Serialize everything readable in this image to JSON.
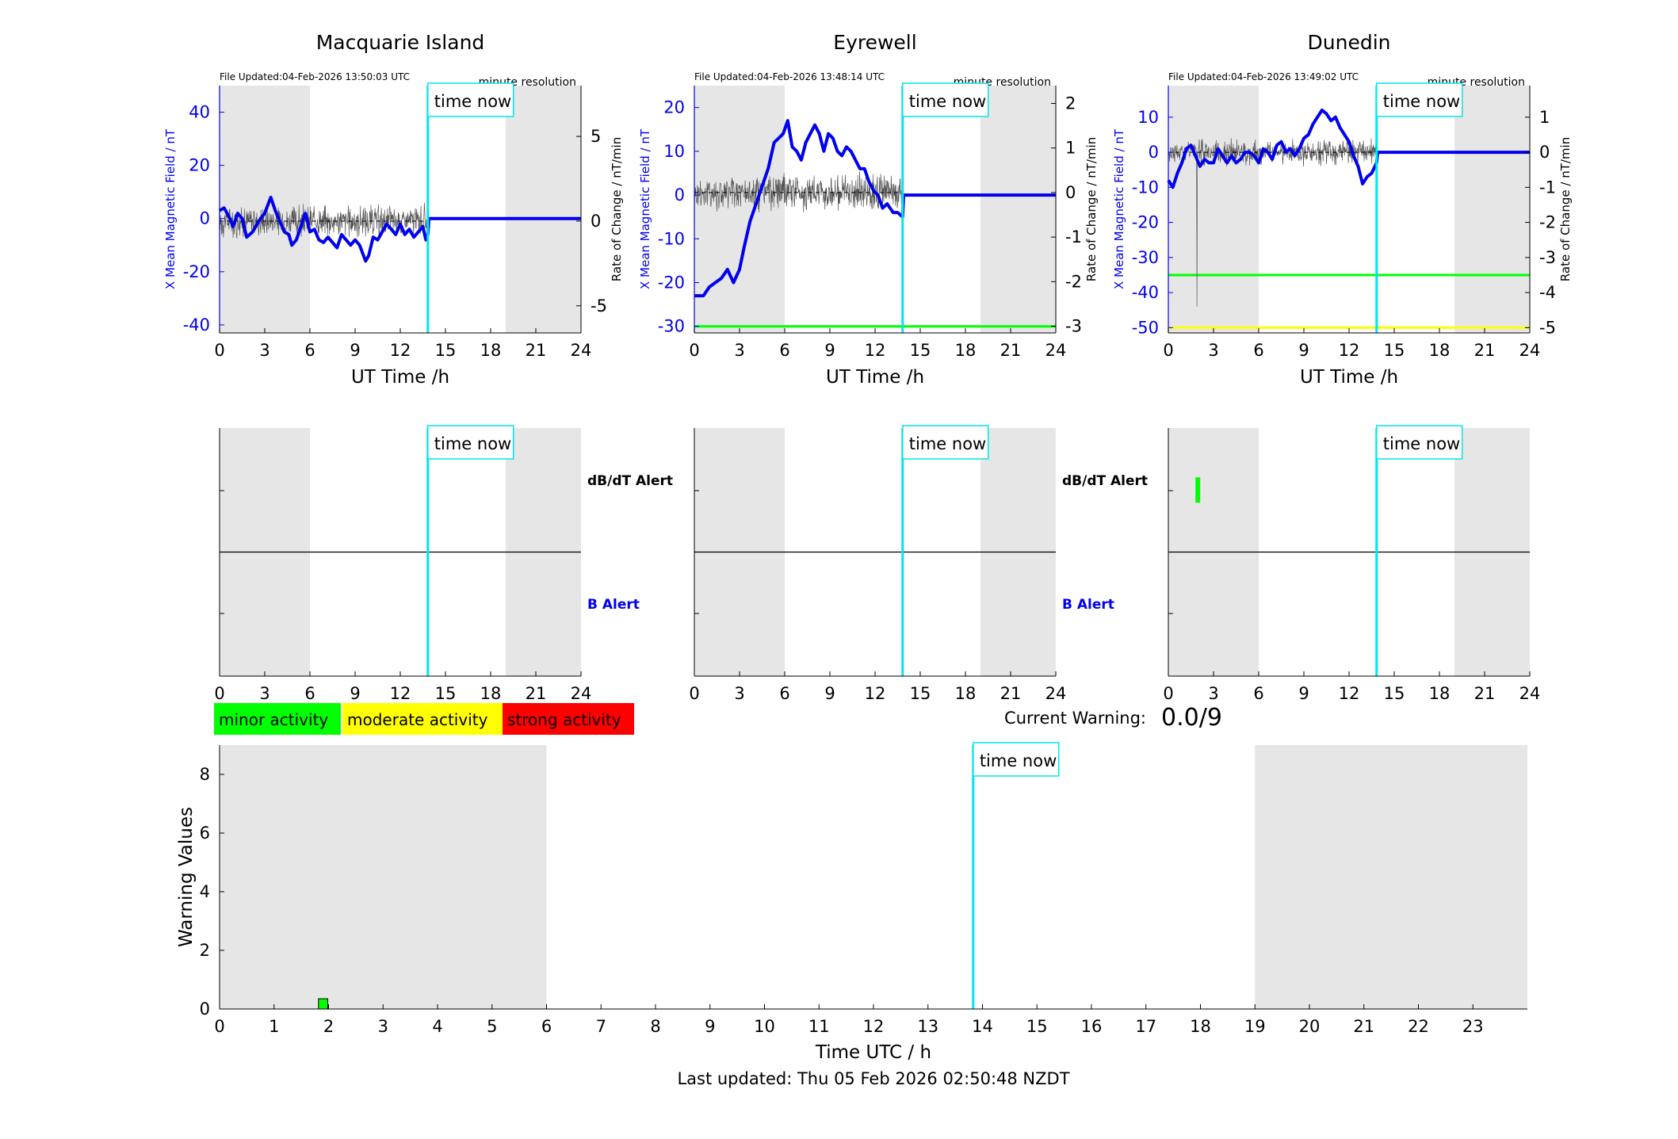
{
  "time_now_label": "time now",
  "top_panels": [
    {
      "title": "Macquarie Island",
      "file_updated": "File Updated:04-Feb-2026 13:50:03 UTC",
      "resolution": "minute resolution",
      "ylabel_left": "X Mean Magnetic Field / nT",
      "ylabel_right": "Rate of Change / nT/min",
      "xlabel": "UT Time /h"
    },
    {
      "title": "Eyrewell",
      "file_updated": "File Updated:04-Feb-2026 13:48:14 UTC",
      "resolution": "minute resolution",
      "ylabel_left": "X Mean Magnetic Field / nT",
      "ylabel_right": "Rate of Change / nT/min",
      "xlabel": "UT Time /h"
    },
    {
      "title": "Dunedin",
      "file_updated": "File Updated:04-Feb-2026 13:49:02 UTC",
      "resolution": "minute resolution",
      "ylabel_left": "X Mean Magnetic Field / nT",
      "ylabel_right": "Rate of Change / nT/min",
      "xlabel": "UT Time /h"
    }
  ],
  "alert_labels": {
    "dbdt": "dB/dT Alert",
    "b": "B Alert"
  },
  "legend": [
    {
      "label": "minor activity",
      "color": "#00ff00"
    },
    {
      "label": "moderate activity",
      "color": "#ffff00"
    },
    {
      "label": "strong activity",
      "color": "#ff0000"
    }
  ],
  "current_warning": {
    "label": "Current Warning:",
    "value": "0.0/9"
  },
  "last_updated": "Last updated: Thu 05 Feb 2026 02:50:48 NZDT",
  "chart_data": [
    {
      "type": "line",
      "station": "Macquarie Island",
      "x_range": [
        0,
        24
      ],
      "x_ticks": [
        0,
        3,
        6,
        9,
        12,
        15,
        18,
        21,
        24
      ],
      "y_left_range": [
        -43,
        50
      ],
      "y_left_ticks": [
        -40,
        -20,
        0,
        20,
        40
      ],
      "y_right_range": [
        -6.6,
        8.0
      ],
      "y_right_ticks": [
        -5,
        0,
        5
      ],
      "time_now": 13.83,
      "night_shading": [
        [
          0,
          6
        ],
        [
          19,
          24
        ]
      ],
      "threshold_lines": [],
      "mean_field": [
        [
          0,
          3
        ],
        [
          0.3,
          4
        ],
        [
          0.6,
          1
        ],
        [
          0.9,
          -3
        ],
        [
          1.2,
          2
        ],
        [
          1.5,
          0
        ],
        [
          1.8,
          -7
        ],
        [
          2.2,
          -5
        ],
        [
          2.6,
          -1
        ],
        [
          3.0,
          2
        ],
        [
          3.4,
          8
        ],
        [
          3.7,
          3
        ],
        [
          4.0,
          -1
        ],
        [
          4.3,
          -5
        ],
        [
          4.6,
          -6
        ],
        [
          4.8,
          -10
        ],
        [
          5.1,
          -8
        ],
        [
          5.4,
          -3
        ],
        [
          5.7,
          2
        ],
        [
          6.0,
          -5
        ],
        [
          6.3,
          -4
        ],
        [
          6.6,
          -8
        ],
        [
          6.9,
          -9
        ],
        [
          7.2,
          -7
        ],
        [
          7.5,
          -9
        ],
        [
          7.8,
          -11
        ],
        [
          8.1,
          -6
        ],
        [
          8.4,
          -8
        ],
        [
          8.7,
          -10
        ],
        [
          9.0,
          -8
        ],
        [
          9.3,
          -10
        ],
        [
          9.5,
          -13
        ],
        [
          9.7,
          -16
        ],
        [
          9.9,
          -14
        ],
        [
          10.2,
          -7
        ],
        [
          10.5,
          -8
        ],
        [
          10.8,
          -5
        ],
        [
          11.1,
          -2
        ],
        [
          11.4,
          -4
        ],
        [
          11.7,
          -6
        ],
        [
          12.0,
          -2
        ],
        [
          12.3,
          -6
        ],
        [
          12.6,
          -4
        ],
        [
          12.9,
          -7
        ],
        [
          13.2,
          -5
        ],
        [
          13.5,
          -3
        ],
        [
          13.7,
          -8
        ],
        [
          13.83,
          -6
        ],
        [
          13.9,
          0
        ],
        [
          24,
          0
        ]
      ],
      "rate_of_change": {
        "baseline": 0,
        "noise_amplitude": 0.8
      }
    },
    {
      "type": "line",
      "station": "Eyrewell",
      "x_range": [
        0,
        24
      ],
      "x_ticks": [
        0,
        3,
        6,
        9,
        12,
        15,
        18,
        21,
        24
      ],
      "y_left_range": [
        -31.5,
        25
      ],
      "y_left_ticks": [
        -30,
        -20,
        -10,
        0,
        10,
        20
      ],
      "y_right_range": [
        -3.15,
        2.4
      ],
      "y_right_ticks": [
        -3,
        -2,
        -1,
        0,
        1,
        2
      ],
      "time_now": 13.83,
      "night_shading": [
        [
          0,
          6
        ],
        [
          19,
          24
        ]
      ],
      "threshold_lines": [
        {
          "axis": "left",
          "value": -30,
          "color": "#00ff00"
        }
      ],
      "mean_field": [
        [
          0,
          -23
        ],
        [
          0.6,
          -23
        ],
        [
          1.0,
          -21
        ],
        [
          1.4,
          -20
        ],
        [
          1.8,
          -19
        ],
        [
          2.2,
          -17
        ],
        [
          2.6,
          -20
        ],
        [
          3.0,
          -17
        ],
        [
          3.3,
          -12
        ],
        [
          3.7,
          -6
        ],
        [
          4.1,
          -2
        ],
        [
          4.5,
          2
        ],
        [
          4.9,
          6
        ],
        [
          5.3,
          12
        ],
        [
          5.6,
          13
        ],
        [
          5.9,
          14
        ],
        [
          6.2,
          17
        ],
        [
          6.5,
          11
        ],
        [
          6.8,
          10
        ],
        [
          7.1,
          8
        ],
        [
          7.4,
          12
        ],
        [
          7.7,
          14
        ],
        [
          8.0,
          16
        ],
        [
          8.3,
          14
        ],
        [
          8.6,
          10
        ],
        [
          8.9,
          14
        ],
        [
          9.2,
          13
        ],
        [
          9.5,
          10
        ],
        [
          9.8,
          9
        ],
        [
          10.1,
          11
        ],
        [
          10.4,
          10
        ],
        [
          10.7,
          8
        ],
        [
          11.0,
          6
        ],
        [
          11.3,
          6
        ],
        [
          11.6,
          3
        ],
        [
          11.9,
          1
        ],
        [
          12.2,
          0
        ],
        [
          12.5,
          -3
        ],
        [
          12.8,
          -2
        ],
        [
          13.2,
          -4
        ],
        [
          13.5,
          -4
        ],
        [
          13.83,
          -5
        ],
        [
          13.9,
          0
        ],
        [
          24,
          0
        ]
      ],
      "rate_of_change": {
        "baseline": 0,
        "noise_amplitude": 0.35
      }
    },
    {
      "type": "line",
      "station": "Dunedin",
      "x_range": [
        0,
        24
      ],
      "x_ticks": [
        0,
        3,
        6,
        9,
        12,
        15,
        18,
        21,
        24
      ],
      "y_left_range": [
        -51.5,
        19
      ],
      "y_left_ticks": [
        -50,
        -40,
        -30,
        -20,
        -10,
        0,
        10
      ],
      "y_right_range": [
        -5.15,
        1.9
      ],
      "y_right_ticks": [
        -5,
        -4,
        -3,
        -2,
        -1,
        0,
        1
      ],
      "time_now": 13.83,
      "night_shading": [
        [
          0,
          6
        ],
        [
          19,
          24
        ]
      ],
      "threshold_lines": [
        {
          "axis": "left",
          "value": -35,
          "color": "#00ff00"
        },
        {
          "axis": "left",
          "value": -50,
          "color": "#ffff00"
        }
      ],
      "mean_field": [
        [
          0,
          -8
        ],
        [
          0.3,
          -10
        ],
        [
          0.6,
          -6
        ],
        [
          0.9,
          -3
        ],
        [
          1.2,
          1
        ],
        [
          1.5,
          2
        ],
        [
          1.8,
          -1
        ],
        [
          2.1,
          -4
        ],
        [
          2.4,
          -2
        ],
        [
          2.7,
          -3
        ],
        [
          3.0,
          -3
        ],
        [
          3.3,
          1
        ],
        [
          3.6,
          -1
        ],
        [
          3.9,
          -3
        ],
        [
          4.2,
          -1
        ],
        [
          4.5,
          -3
        ],
        [
          4.8,
          -2
        ],
        [
          5.1,
          0
        ],
        [
          5.4,
          0
        ],
        [
          5.7,
          -1
        ],
        [
          6.0,
          -3
        ],
        [
          6.3,
          1
        ],
        [
          6.6,
          0
        ],
        [
          6.9,
          -2
        ],
        [
          7.2,
          2
        ],
        [
          7.5,
          3
        ],
        [
          7.8,
          0
        ],
        [
          8.1,
          1
        ],
        [
          8.4,
          -1
        ],
        [
          8.7,
          1
        ],
        [
          9.0,
          4
        ],
        [
          9.3,
          5
        ],
        [
          9.6,
          8
        ],
        [
          9.9,
          10
        ],
        [
          10.2,
          12
        ],
        [
          10.5,
          11
        ],
        [
          10.8,
          9
        ],
        [
          11.1,
          10
        ],
        [
          11.4,
          7
        ],
        [
          11.7,
          5
        ],
        [
          12.0,
          3
        ],
        [
          12.3,
          -1
        ],
        [
          12.6,
          -4
        ],
        [
          12.9,
          -9
        ],
        [
          13.2,
          -7
        ],
        [
          13.5,
          -6
        ],
        [
          13.83,
          -3
        ],
        [
          13.9,
          0
        ],
        [
          24,
          0
        ]
      ],
      "rate_of_change": {
        "baseline": 0,
        "noise_amplitude": 0.3,
        "spike": {
          "x": 1.9,
          "value": -4.4
        }
      }
    },
    {
      "type": "bar",
      "station": "Macquarie Island",
      "panel": "alerts",
      "x_range": [
        0,
        24
      ],
      "x_ticks": [
        0,
        3,
        6,
        9,
        12,
        15,
        18,
        21,
        24
      ],
      "time_now": 13.83,
      "night_shading": [
        [
          0,
          6
        ],
        [
          19,
          24
        ]
      ],
      "alerts": []
    },
    {
      "type": "bar",
      "station": "Eyrewell",
      "panel": "alerts",
      "x_range": [
        0,
        24
      ],
      "x_ticks": [
        0,
        3,
        6,
        9,
        12,
        15,
        18,
        21,
        24
      ],
      "time_now": 13.83,
      "night_shading": [
        [
          0,
          6
        ],
        [
          19,
          24
        ]
      ],
      "alerts": []
    },
    {
      "type": "bar",
      "station": "Dunedin",
      "panel": "alerts",
      "x_range": [
        0,
        24
      ],
      "x_ticks": [
        0,
        3,
        6,
        9,
        12,
        15,
        18,
        21,
        24
      ],
      "time_now": 13.83,
      "night_shading": [
        [
          0,
          6
        ],
        [
          19,
          24
        ]
      ],
      "alerts": [
        {
          "type": "dbdt",
          "start": 1.8,
          "end": 2.0,
          "level": "minor",
          "color": "#00ff00"
        }
      ]
    },
    {
      "type": "bar",
      "panel": "warning",
      "xlabel": "Time UTC / h",
      "ylabel": "Warning Values",
      "x_range": [
        0,
        24
      ],
      "x_ticks": [
        0,
        1,
        2,
        3,
        4,
        5,
        6,
        7,
        8,
        9,
        10,
        11,
        12,
        13,
        14,
        15,
        16,
        17,
        18,
        19,
        20,
        21,
        22,
        23
      ],
      "ylim": [
        0,
        9
      ],
      "y_ticks": [
        0,
        2,
        4,
        6,
        8
      ],
      "time_now": 13.83,
      "night_shading": [
        [
          0,
          6
        ],
        [
          19,
          24
        ]
      ],
      "bars": [
        {
          "x": 1.9,
          "width": 0.17,
          "value": 0.35,
          "color": "#00ff00"
        }
      ]
    }
  ]
}
